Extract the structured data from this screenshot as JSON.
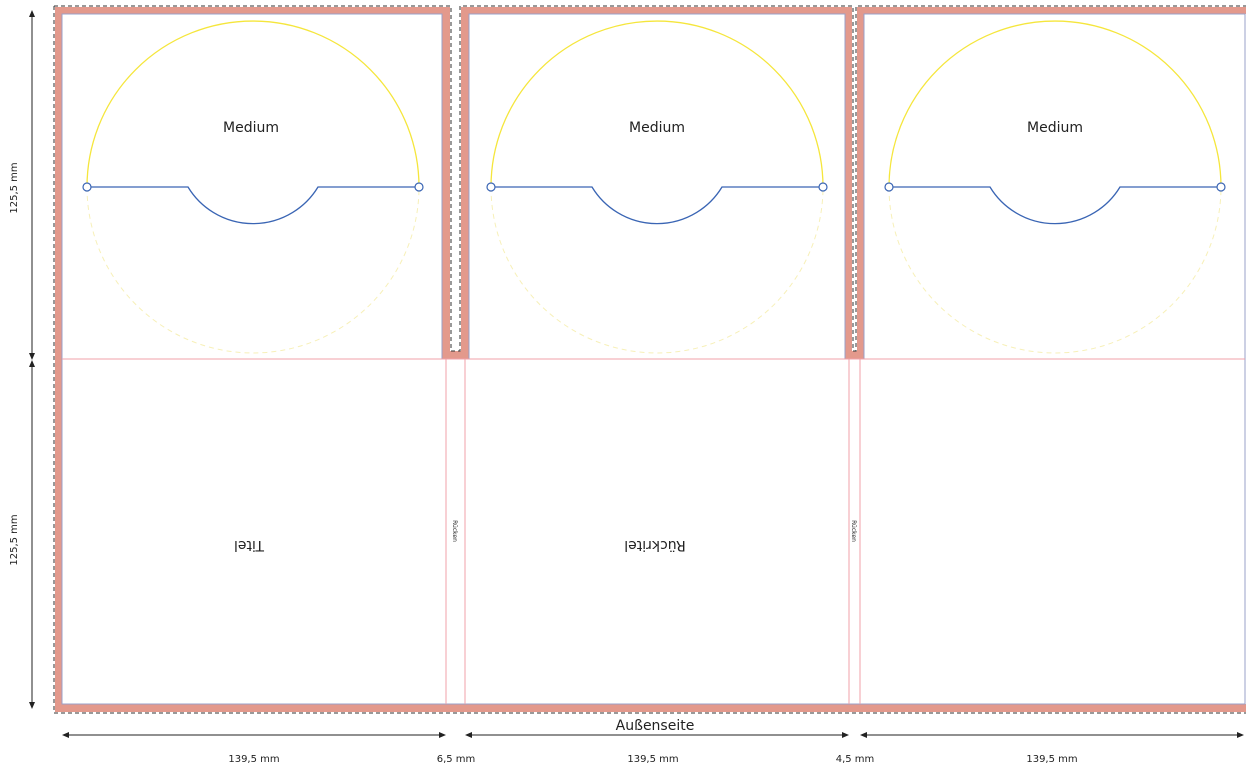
{
  "panels": {
    "top": [
      {
        "label": "Medium"
      },
      {
        "label": "Medium"
      },
      {
        "label": "Medium"
      }
    ],
    "bottom": {
      "front_label": "Titel",
      "back_label": "Rückritel",
      "spine_label_1": "Rücken",
      "spine_label_2": "Rücken"
    }
  },
  "dimensions": {
    "height_top": "125,5 mm",
    "height_bottom": "125,5 mm",
    "width_panel_1": "139,5 mm",
    "width_spine_1": "6,5 mm",
    "width_panel_2": "139,5 mm",
    "width_spine_2": "4,5 mm",
    "width_panel_3": "139,5 mm"
  },
  "side_label": "Außenseite",
  "colors": {
    "bleed": "#e3998c",
    "guide": "#f0a0a8",
    "disc_arc": "#f5e63c",
    "disc_dashed": "#f7f0b8",
    "tray": "#3a65b4",
    "outline": "#9aa0c8",
    "dash": "#333333",
    "text": "#222222"
  }
}
